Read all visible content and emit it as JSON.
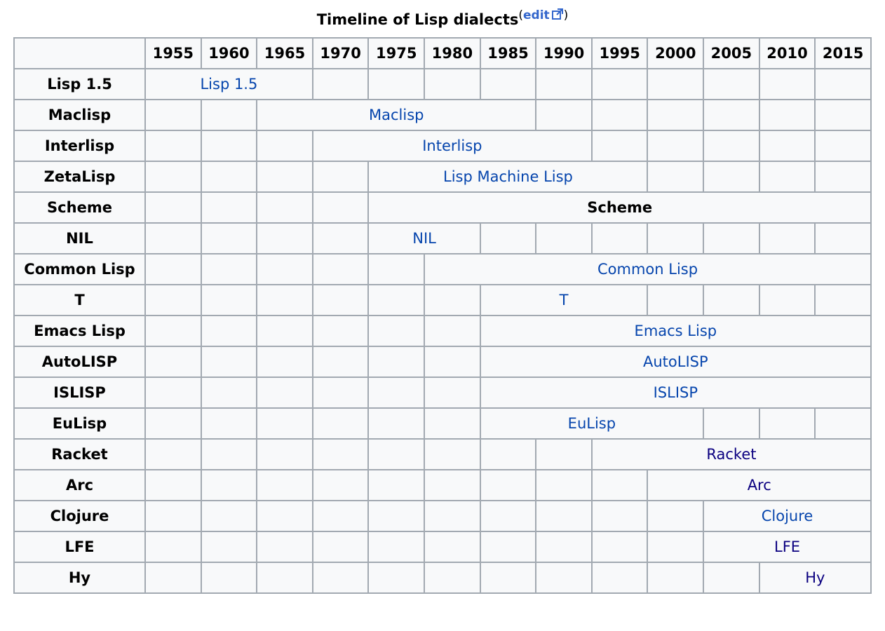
{
  "caption": {
    "title": "Timeline of Lisp dialects",
    "open_paren": "(",
    "edit_label": "edit",
    "close_paren": ")",
    "edit_icon": "external-link-icon"
  },
  "years": [
    "1955",
    "1960",
    "1965",
    "1970",
    "1975",
    "1980",
    "1985",
    "1990",
    "1995",
    "2000",
    "2005",
    "2010",
    "2015"
  ],
  "rows": [
    {
      "name": "Lisp 1.5",
      "label": "Lisp 1.5",
      "start": 0,
      "span": 3,
      "style": "link"
    },
    {
      "name": "Maclisp",
      "label": "Maclisp",
      "start": 2,
      "span": 5,
      "style": "link"
    },
    {
      "name": "Interlisp",
      "label": "Interlisp",
      "start": 3,
      "span": 5,
      "style": "link"
    },
    {
      "name": "ZetaLisp",
      "label": "Lisp Machine Lisp",
      "start": 4,
      "span": 5,
      "style": "link"
    },
    {
      "name": "Scheme",
      "label": "Scheme",
      "start": 4,
      "span": 9,
      "style": "bold"
    },
    {
      "name": "NIL",
      "label": "NIL",
      "start": 4,
      "span": 2,
      "style": "link"
    },
    {
      "name": "Common Lisp",
      "label": "Common Lisp",
      "start": 5,
      "span": 8,
      "style": "link"
    },
    {
      "name": "T",
      "label": "T",
      "start": 6,
      "span": 3,
      "style": "link"
    },
    {
      "name": "Emacs Lisp",
      "label": "Emacs Lisp",
      "start": 6,
      "span": 7,
      "style": "link"
    },
    {
      "name": "AutoLISP",
      "label": "AutoLISP",
      "start": 6,
      "span": 7,
      "style": "link"
    },
    {
      "name": "ISLISP",
      "label": "ISLISP",
      "start": 6,
      "span": 7,
      "style": "link"
    },
    {
      "name": "EuLisp",
      "label": "EuLisp",
      "start": 6,
      "span": 4,
      "style": "link"
    },
    {
      "name": "Racket",
      "label": "Racket",
      "start": 8,
      "span": 5,
      "style": "visited"
    },
    {
      "name": "Arc",
      "label": "Arc",
      "start": 9,
      "span": 4,
      "style": "visited"
    },
    {
      "name": "Clojure",
      "label": "Clojure",
      "start": 10,
      "span": 3,
      "style": "link"
    },
    {
      "name": "LFE",
      "label": "LFE",
      "start": 10,
      "span": 3,
      "style": "visited"
    },
    {
      "name": "Hy",
      "label": "Hy",
      "start": 11,
      "span": 2,
      "style": "visited"
    }
  ],
  "colors": {
    "link": "#0645ad",
    "visited_link": "#0b0080",
    "span_fill": "#d3d3d3",
    "cell_fill": "#f8f9fa",
    "header_fill": "#f2f2f2",
    "border": "#a2a9b1"
  }
}
